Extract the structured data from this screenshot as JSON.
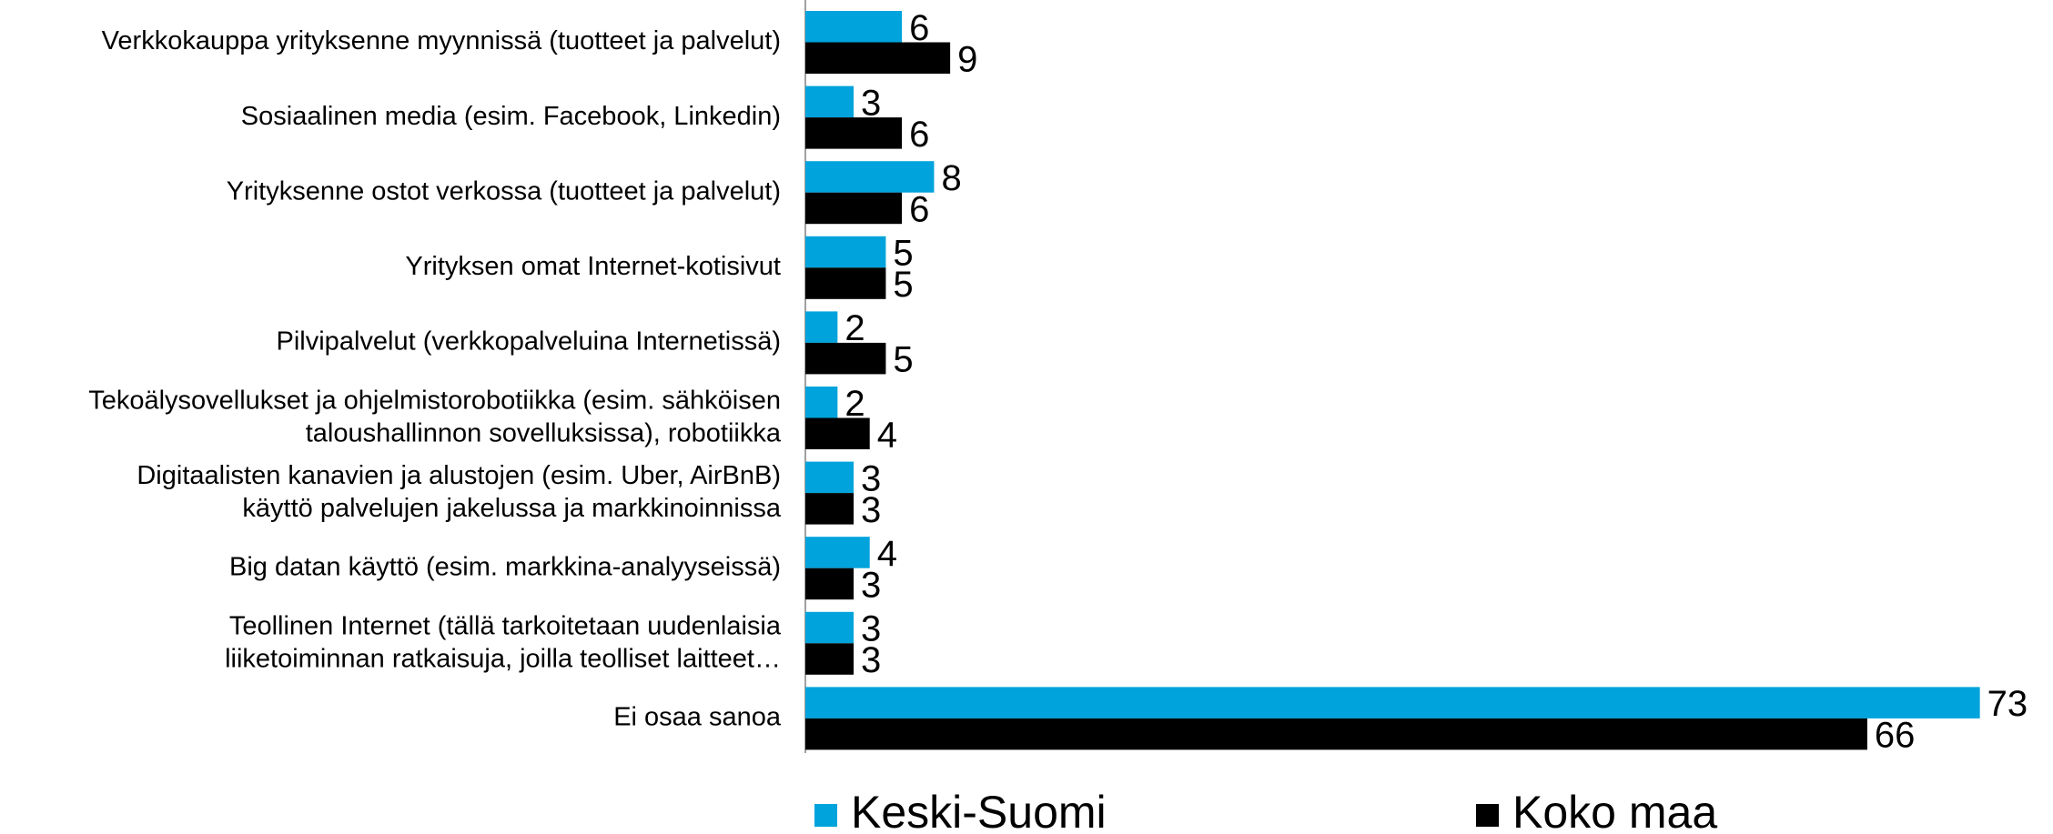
{
  "chart_data": {
    "type": "bar",
    "orientation": "horizontal",
    "categories": [
      "Verkkokauppa yrityksenne myynnissä (tuotteet ja palvelut)",
      "Sosiaalinen media (esim. Facebook, Linkedin)",
      "Yrityksenne ostot verkossa (tuotteet ja palvelut)",
      "Yrityksen omat Internet-kotisivut",
      "Pilvipalvelut  (verkkopalveluina Internetissä)",
      "Tekoälysovellukset ja ohjelmistorobotiikka (esim. sähköisen\ntaloushallinnon sovelluksissa), robotiikka",
      "Digitaalisten kanavien ja alustojen (esim. Uber, AirBnB)\nkäyttö palvelujen jakelussa ja markkinoinnissa",
      "Big datan käyttö (esim. markkina-analyyseissä)",
      "Teollinen Internet (tällä tarkoitetaan uudenlaisia\nliiketoiminnan ratkaisuja, joilla teolliset laitteet…",
      "Ei osaa sanoa"
    ],
    "series": [
      {
        "name": "Keski-Suomi",
        "color": "#00a3dc",
        "values": [
          6,
          3,
          8,
          5,
          2,
          2,
          3,
          4,
          3,
          73
        ]
      },
      {
        "name": "Koko maa",
        "color": "#000000",
        "values": [
          9,
          6,
          6,
          5,
          5,
          4,
          3,
          3,
          3,
          66
        ]
      }
    ],
    "legend": "bottom"
  }
}
